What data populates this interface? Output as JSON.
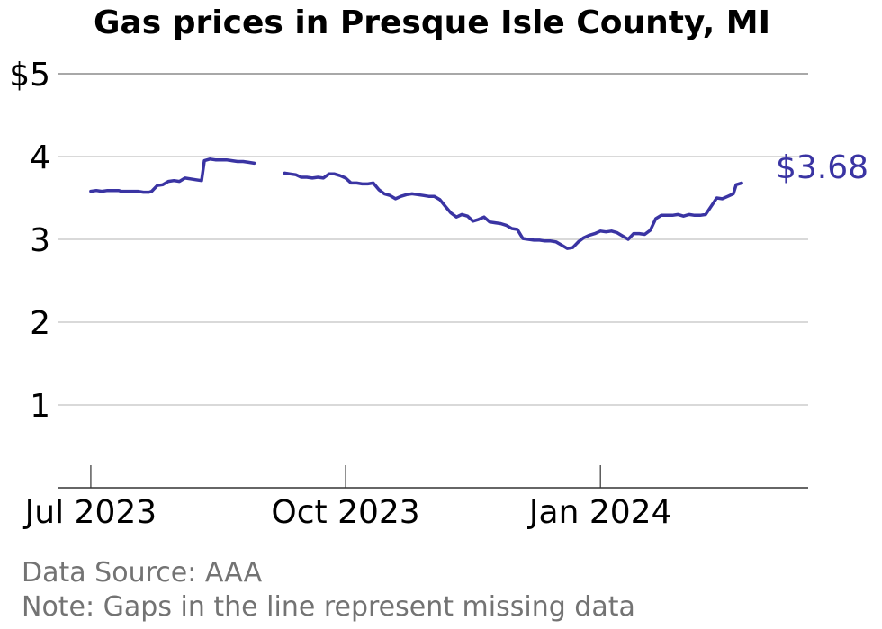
{
  "chart_data": {
    "type": "line",
    "title": "Gas prices in Presque Isle County, MI",
    "xlabel": "",
    "ylabel": "",
    "ylim": [
      0,
      5
    ],
    "xlim": [
      "2023-06-19",
      "2024-03-16"
    ],
    "yticks": [
      {
        "value": 5,
        "label": "$5"
      },
      {
        "value": 4,
        "label": "4"
      },
      {
        "value": 3,
        "label": "3"
      },
      {
        "value": 2,
        "label": "2"
      },
      {
        "value": 1,
        "label": "1"
      }
    ],
    "xticks": [
      {
        "date": "2023-07-01",
        "label": "Jul 2023"
      },
      {
        "date": "2023-10-01",
        "label": "Oct 2023"
      },
      {
        "date": "2024-01-01",
        "label": "Jan 2024"
      }
    ],
    "grid": "horizontal",
    "series_color": "#3a34a3",
    "end_label": "$3.68",
    "series": [
      {
        "segments": [
          [
            [
              "2023-07-01",
              3.58
            ],
            [
              "2023-07-03",
              3.59
            ],
            [
              "2023-07-05",
              3.58
            ],
            [
              "2023-07-07",
              3.59
            ],
            [
              "2023-07-09",
              3.59
            ],
            [
              "2023-07-11",
              3.59
            ],
            [
              "2023-07-12",
              3.58
            ],
            [
              "2023-07-14",
              3.58
            ],
            [
              "2023-07-16",
              3.58
            ],
            [
              "2023-07-18",
              3.58
            ],
            [
              "2023-07-20",
              3.57
            ],
            [
              "2023-07-22",
              3.57
            ],
            [
              "2023-07-23",
              3.58
            ],
            [
              "2023-07-25",
              3.65
            ],
            [
              "2023-07-27",
              3.66
            ],
            [
              "2023-07-29",
              3.7
            ],
            [
              "2023-07-31",
              3.71
            ],
            [
              "2023-08-02",
              3.7
            ],
            [
              "2023-08-04",
              3.74
            ],
            [
              "2023-08-06",
              3.73
            ],
            [
              "2023-08-08",
              3.72
            ],
            [
              "2023-08-10",
              3.71
            ],
            [
              "2023-08-11",
              3.95
            ],
            [
              "2023-08-13",
              3.97
            ],
            [
              "2023-08-15",
              3.96
            ],
            [
              "2023-08-17",
              3.96
            ],
            [
              "2023-08-19",
              3.96
            ],
            [
              "2023-08-21",
              3.95
            ],
            [
              "2023-08-23",
              3.94
            ],
            [
              "2023-08-25",
              3.94
            ],
            [
              "2023-08-27",
              3.93
            ],
            [
              "2023-08-29",
              3.92
            ]
          ],
          [
            [
              "2023-09-09",
              3.8
            ],
            [
              "2023-09-11",
              3.79
            ],
            [
              "2023-09-13",
              3.78
            ],
            [
              "2023-09-15",
              3.75
            ],
            [
              "2023-09-17",
              3.75
            ],
            [
              "2023-09-19",
              3.74
            ],
            [
              "2023-09-21",
              3.75
            ],
            [
              "2023-09-23",
              3.74
            ],
            [
              "2023-09-25",
              3.79
            ],
            [
              "2023-09-27",
              3.79
            ],
            [
              "2023-09-29",
              3.77
            ],
            [
              "2023-10-01",
              3.74
            ],
            [
              "2023-10-03",
              3.68
            ],
            [
              "2023-10-05",
              3.68
            ],
            [
              "2023-10-07",
              3.67
            ],
            [
              "2023-10-09",
              3.67
            ],
            [
              "2023-10-11",
              3.68
            ],
            [
              "2023-10-13",
              3.6
            ],
            [
              "2023-10-15",
              3.55
            ],
            [
              "2023-10-17",
              3.53
            ],
            [
              "2023-10-19",
              3.49
            ],
            [
              "2023-10-21",
              3.52
            ],
            [
              "2023-10-23",
              3.54
            ],
            [
              "2023-10-25",
              3.55
            ],
            [
              "2023-10-27",
              3.54
            ],
            [
              "2023-10-29",
              3.53
            ],
            [
              "2023-10-31",
              3.52
            ],
            [
              "2023-11-02",
              3.52
            ],
            [
              "2023-11-04",
              3.48
            ],
            [
              "2023-11-06",
              3.4
            ],
            [
              "2023-11-08",
              3.32
            ],
            [
              "2023-11-10",
              3.27
            ],
            [
              "2023-11-12",
              3.3
            ],
            [
              "2023-11-14",
              3.28
            ],
            [
              "2023-11-16",
              3.22
            ],
            [
              "2023-11-18",
              3.24
            ],
            [
              "2023-11-20",
              3.27
            ],
            [
              "2023-11-22",
              3.21
            ],
            [
              "2023-11-24",
              3.2
            ],
            [
              "2023-11-26",
              3.19
            ],
            [
              "2023-11-28",
              3.17
            ],
            [
              "2023-11-30",
              3.13
            ],
            [
              "2023-12-02",
              3.12
            ],
            [
              "2023-12-04",
              3.01
            ],
            [
              "2023-12-06",
              3.0
            ],
            [
              "2023-12-08",
              2.99
            ],
            [
              "2023-12-10",
              2.99
            ],
            [
              "2023-12-12",
              2.98
            ],
            [
              "2023-12-14",
              2.98
            ],
            [
              "2023-12-16",
              2.97
            ],
            [
              "2023-12-18",
              2.93
            ],
            [
              "2023-12-20",
              2.89
            ],
            [
              "2023-12-22",
              2.9
            ],
            [
              "2023-12-24",
              2.97
            ],
            [
              "2023-12-26",
              3.02
            ],
            [
              "2023-12-28",
              3.05
            ],
            [
              "2023-12-30",
              3.07
            ],
            [
              "2024-01-01",
              3.1
            ],
            [
              "2024-01-03",
              3.09
            ],
            [
              "2024-01-05",
              3.1
            ],
            [
              "2024-01-07",
              3.08
            ],
            [
              "2024-01-09",
              3.04
            ],
            [
              "2024-01-11",
              3.0
            ],
            [
              "2024-01-13",
              3.07
            ],
            [
              "2024-01-15",
              3.07
            ],
            [
              "2024-01-17",
              3.06
            ],
            [
              "2024-01-19",
              3.11
            ],
            [
              "2024-01-21",
              3.25
            ],
            [
              "2024-01-23",
              3.29
            ],
            [
              "2024-01-25",
              3.29
            ],
            [
              "2024-01-27",
              3.29
            ],
            [
              "2024-01-29",
              3.3
            ],
            [
              "2024-01-31",
              3.28
            ],
            [
              "2024-02-02",
              3.3
            ],
            [
              "2024-02-04",
              3.29
            ],
            [
              "2024-02-06",
              3.29
            ],
            [
              "2024-02-08",
              3.3
            ],
            [
              "2024-02-10",
              3.4
            ],
            [
              "2024-02-12",
              3.5
            ],
            [
              "2024-02-14",
              3.49
            ],
            [
              "2024-02-16",
              3.52
            ],
            [
              "2024-02-18",
              3.55
            ],
            [
              "2024-02-19",
              3.66
            ],
            [
              "2024-02-21",
              3.68
            ]
          ]
        ]
      }
    ]
  },
  "footer": {
    "source": "Data Source: AAA",
    "note": "Note: Gaps in the line represent missing data"
  }
}
